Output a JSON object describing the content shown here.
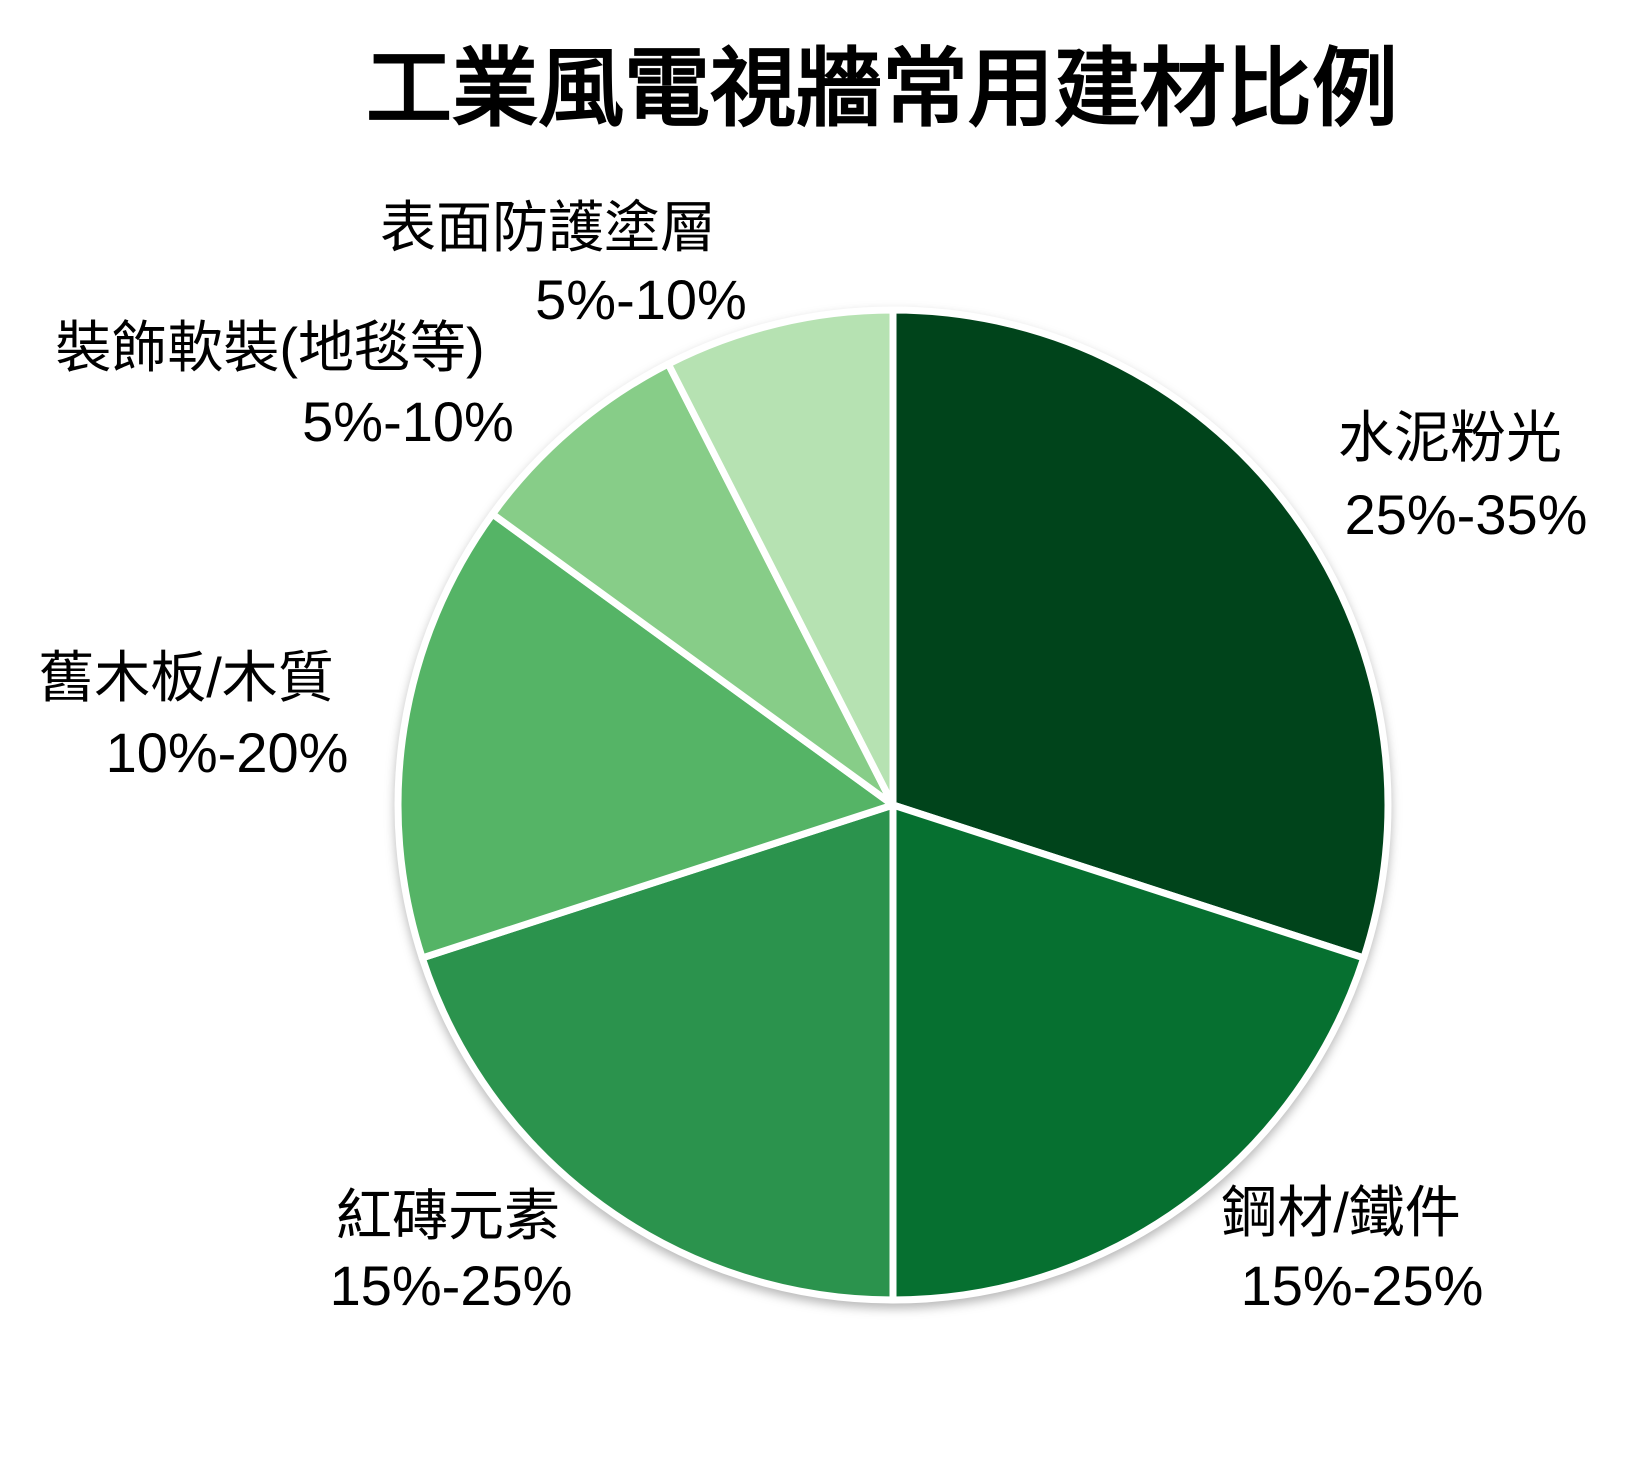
{
  "title": "工業風電視牆常用建材比例",
  "chart_data": {
    "type": "pie",
    "title": "工業風電視牆常用建材比例",
    "start_angle": "12 o'clock, clockwise",
    "legend_position": "none",
    "labels_position": "outside",
    "background": "#ffffff",
    "separator_color": "#ffffff",
    "segments": [
      {
        "label": "水泥粉光",
        "range": "25%-35%",
        "value_pct": 30,
        "color": "#00441b"
      },
      {
        "label": "鋼材/鐵件",
        "range": "15%-25%",
        "value_pct": 20,
        "color": "#067030"
      },
      {
        "label": "紅磚元素",
        "range": "15%-25%",
        "value_pct": 20,
        "color": "#2b934d"
      },
      {
        "label": "舊木板/木質",
        "range": "10%-20%",
        "value_pct": 15,
        "color": "#55b466"
      },
      {
        "label": "裝飾軟裝(地毯等)",
        "range": "5%-10%",
        "value_pct": 7.5,
        "color": "#87cd88"
      },
      {
        "label": "表面防護塗層",
        "range": "5%-10%",
        "value_pct": 7.5,
        "color": "#b6e2b2"
      }
    ]
  }
}
